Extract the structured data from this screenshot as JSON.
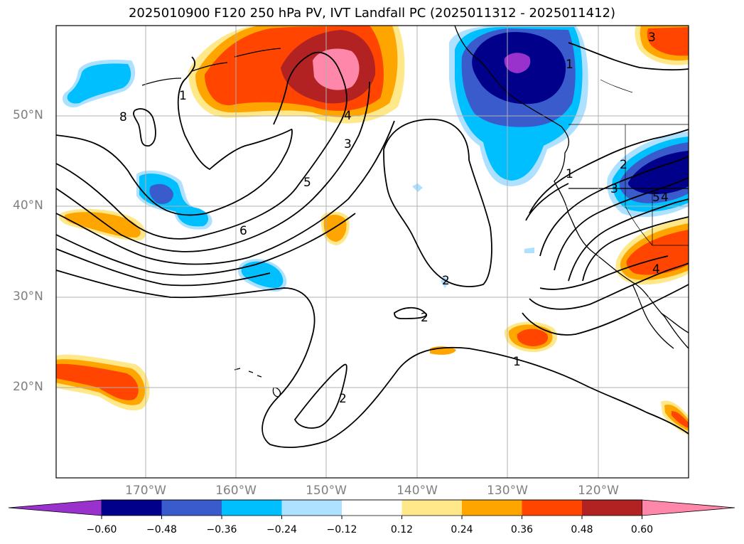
{
  "title": "2025010900 F120 250 hPa PV, IVT Landfall PC (2025011312 - 2025011412)",
  "map": {
    "projection": "lat-lon",
    "lon_range": [
      -180,
      -110
    ],
    "lat_range": [
      10,
      60
    ],
    "lat_labels": [
      "50°N",
      "40°N",
      "30°N",
      "20°N"
    ],
    "lon_labels": [
      "170°W",
      "160°W",
      "150°W",
      "140°W",
      "130°W",
      "120°W"
    ],
    "contour_labels": [
      "8",
      "1",
      "4",
      "3",
      "5",
      "6",
      "2",
      "1",
      "2",
      "3",
      "5",
      "4",
      "1",
      "2",
      "1",
      "3",
      "4",
      "2"
    ]
  },
  "colorbar": {
    "colors": [
      "#9932CC",
      "#00008B",
      "#3A5BCC",
      "#00BFFF",
      "#ADE1FF",
      "#FFFFFF",
      "#FFE88A",
      "#FFA500",
      "#FF4500",
      "#B22222",
      "#FF88AA"
    ],
    "labels": [
      "−0.60",
      "−0.48",
      "−0.36",
      "−0.24",
      "−0.12",
      "0.12",
      "0.24",
      "0.36",
      "0.48",
      "0.60"
    ],
    "extend": "both"
  }
}
